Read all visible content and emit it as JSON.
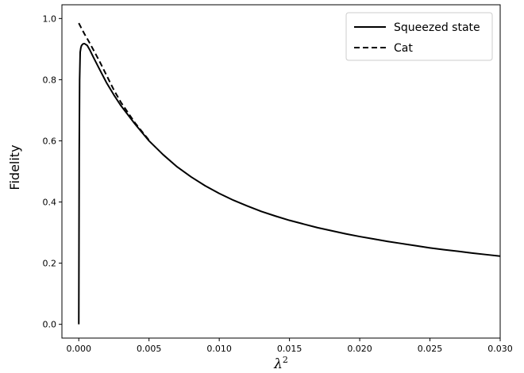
{
  "chart_data": {
    "type": "line",
    "xlabel": "λ",
    "xlabel_superscript": "2",
    "ylabel": "Fidelity",
    "xlim": [
      -0.0012,
      0.03
    ],
    "ylim": [
      -0.045,
      1.045
    ],
    "xticks": [
      0.0,
      0.005,
      0.01,
      0.015,
      0.02,
      0.025,
      0.03
    ],
    "xtick_labels": [
      "0.000",
      "0.005",
      "0.010",
      "0.015",
      "0.020",
      "0.025",
      "0.030"
    ],
    "yticks": [
      0.0,
      0.2,
      0.4,
      0.6,
      0.8,
      1.0
    ],
    "ytick_labels": [
      "0.0",
      "0.2",
      "0.4",
      "0.6",
      "0.8",
      "1.0"
    ],
    "grid": false,
    "legend_position": "top-right",
    "series": [
      {
        "name": "Squeezed state",
        "style": "solid",
        "color": "#000000",
        "x": [
          0.0,
          3e-05,
          6e-05,
          0.0001,
          0.00015,
          0.0002,
          0.0003,
          0.0004,
          0.0005,
          0.0006,
          0.0008,
          0.001,
          0.0012,
          0.0015,
          0.002,
          0.0025,
          0.003,
          0.004,
          0.005,
          0.006,
          0.007,
          0.008,
          0.009,
          0.01,
          0.011,
          0.012,
          0.013,
          0.014,
          0.015,
          0.016,
          0.017,
          0.018,
          0.019,
          0.02,
          0.021,
          0.022,
          0.023,
          0.024,
          0.025,
          0.026,
          0.027,
          0.028,
          0.029,
          0.03
        ],
        "y": [
          0.0,
          0.55,
          0.8,
          0.89,
          0.905,
          0.912,
          0.917,
          0.918,
          0.915,
          0.912,
          0.896,
          0.877,
          0.859,
          0.832,
          0.788,
          0.75,
          0.715,
          0.655,
          0.6,
          0.555,
          0.515,
          0.482,
          0.453,
          0.428,
          0.406,
          0.387,
          0.369,
          0.354,
          0.34,
          0.328,
          0.316,
          0.306,
          0.296,
          0.287,
          0.279,
          0.271,
          0.264,
          0.257,
          0.25,
          0.244,
          0.239,
          0.233,
          0.228,
          0.223
        ]
      },
      {
        "name": "Cat",
        "style": "dashed",
        "color": "#000000",
        "x": [
          0.0,
          0.0002,
          0.0004,
          0.0006,
          0.0008,
          0.001,
          0.0012,
          0.0015,
          0.002,
          0.0025,
          0.003,
          0.004,
          0.005
        ],
        "y": [
          0.985,
          0.967,
          0.95,
          0.934,
          0.918,
          0.901,
          0.884,
          0.858,
          0.812,
          0.766,
          0.726,
          0.659,
          0.602
        ]
      }
    ]
  }
}
